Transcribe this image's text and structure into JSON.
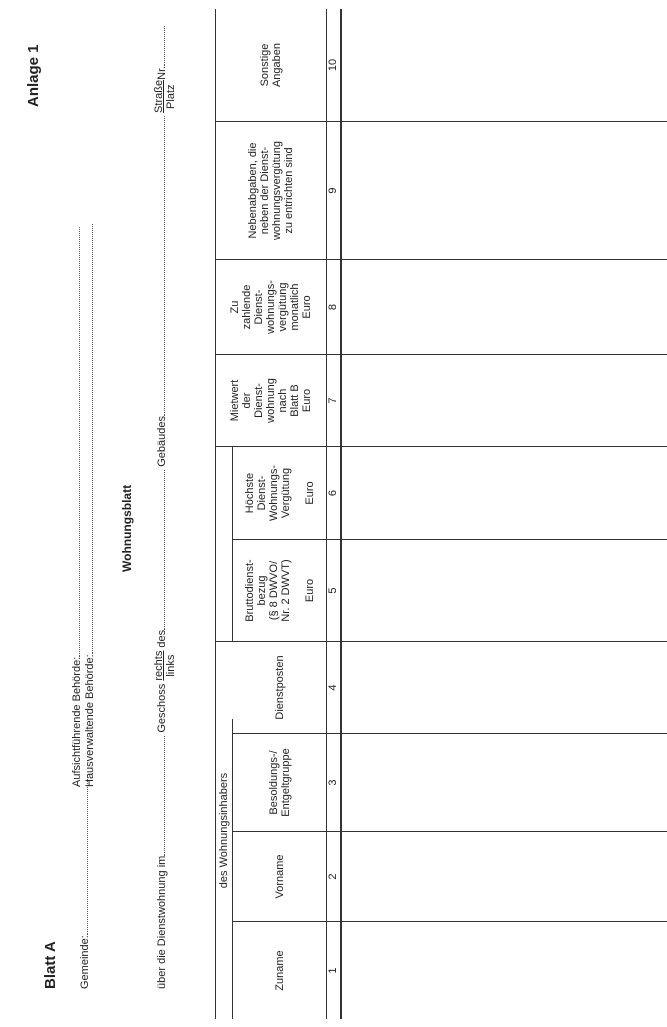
{
  "header": {
    "sheet_label": "Blatt A",
    "annex_label": "Anlage 1",
    "gemeinde_label": "Gemeinde:",
    "aufsicht_label": "Aufsichtführende Behörde:",
    "hausverwaltend_label": "Hausverwaltende Behörde:",
    "doc_title": "Wohnungsblatt",
    "about_prefix": "über die Dienstwohnung im",
    "geschoss_label": "Geschoss",
    "rechts": "rechts",
    "links": "links",
    "des_label": "des",
    "gebaeude_label": "Gebäudes",
    "strasse": "Straße",
    "platz": "Platz",
    "nr_label": "Nr."
  },
  "table": {
    "group_header": "des Wohnungsinhabers",
    "columns": [
      {
        "label": "Zuname",
        "number": "1"
      },
      {
        "label": "Vorname",
        "number": "2"
      },
      {
        "label": "Besoldungs-/\nEntgeltgruppe",
        "number": "3"
      },
      {
        "label": "Dienstposten",
        "number": "4"
      },
      {
        "label": "Bruttodienst-\nbezug\n(§ 8 DWVO/\nNr. 2 DWVT)\n\nEuro",
        "number": "5"
      },
      {
        "label": "Höchste\nDienst-\nWohnungs-\nVergütung\n\nEuro",
        "number": "6"
      },
      {
        "label": "Mietwert\nder\nDienst-\nwohnung\nnach\nBlatt B\nEuro",
        "number": "7"
      },
      {
        "label": "Zu\nzahlende\nDienst-\nwohnungs-\nvergütung\nmonatlich\nEuro",
        "number": "8"
      },
      {
        "label": "Nebenabgaben, die\nneben der Dienst-\nwohnungsvergütung\nzu entrichten sind",
        "number": "9"
      },
      {
        "label": "Sonstige\nAngaben",
        "number": "10"
      }
    ]
  }
}
